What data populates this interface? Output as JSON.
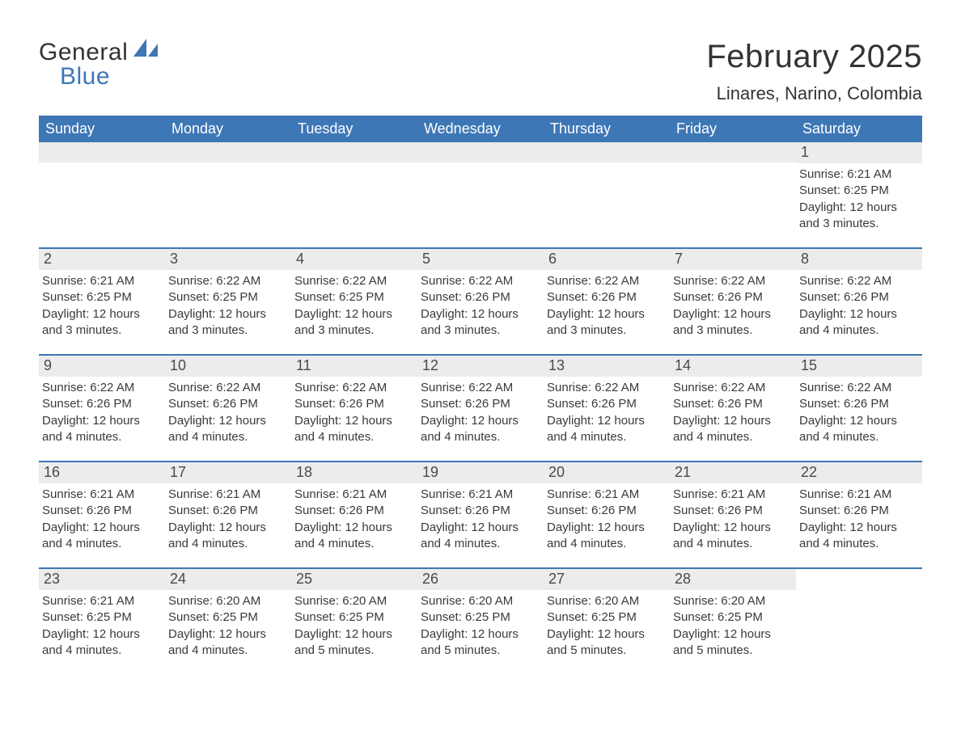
{
  "brand": {
    "word1": "General",
    "word2": "Blue",
    "color_brand": "#3e77b6",
    "color_text": "#333333"
  },
  "title": {
    "month_year": "February 2025",
    "location": "Linares, Narino, Colombia"
  },
  "colors": {
    "header_bg": "#3e77b6",
    "header_fg": "#ffffff",
    "daynum_bg": "#ececec",
    "daynum_fg": "#4a4a4a",
    "rule": "#3e77b6",
    "page_bg": "#ffffff",
    "body_text": "#333333"
  },
  "weekdays": [
    "Sunday",
    "Monday",
    "Tuesday",
    "Wednesday",
    "Thursday",
    "Friday",
    "Saturday"
  ],
  "labels": {
    "sunrise_prefix": "Sunrise: ",
    "sunset_prefix": "Sunset: ",
    "daylight_prefix": "Daylight: "
  },
  "weeks": [
    [
      {
        "blank": true
      },
      {
        "blank": true
      },
      {
        "blank": true
      },
      {
        "blank": true
      },
      {
        "blank": true
      },
      {
        "blank": true
      },
      {
        "num": "1",
        "sunrise": "6:21 AM",
        "sunset": "6:25 PM",
        "daylight": "12 hours and 3 minutes."
      }
    ],
    [
      {
        "num": "2",
        "sunrise": "6:21 AM",
        "sunset": "6:25 PM",
        "daylight": "12 hours and 3 minutes."
      },
      {
        "num": "3",
        "sunrise": "6:22 AM",
        "sunset": "6:25 PM",
        "daylight": "12 hours and 3 minutes."
      },
      {
        "num": "4",
        "sunrise": "6:22 AM",
        "sunset": "6:25 PM",
        "daylight": "12 hours and 3 minutes."
      },
      {
        "num": "5",
        "sunrise": "6:22 AM",
        "sunset": "6:26 PM",
        "daylight": "12 hours and 3 minutes."
      },
      {
        "num": "6",
        "sunrise": "6:22 AM",
        "sunset": "6:26 PM",
        "daylight": "12 hours and 3 minutes."
      },
      {
        "num": "7",
        "sunrise": "6:22 AM",
        "sunset": "6:26 PM",
        "daylight": "12 hours and 3 minutes."
      },
      {
        "num": "8",
        "sunrise": "6:22 AM",
        "sunset": "6:26 PM",
        "daylight": "12 hours and 4 minutes."
      }
    ],
    [
      {
        "num": "9",
        "sunrise": "6:22 AM",
        "sunset": "6:26 PM",
        "daylight": "12 hours and 4 minutes."
      },
      {
        "num": "10",
        "sunrise": "6:22 AM",
        "sunset": "6:26 PM",
        "daylight": "12 hours and 4 minutes."
      },
      {
        "num": "11",
        "sunrise": "6:22 AM",
        "sunset": "6:26 PM",
        "daylight": "12 hours and 4 minutes."
      },
      {
        "num": "12",
        "sunrise": "6:22 AM",
        "sunset": "6:26 PM",
        "daylight": "12 hours and 4 minutes."
      },
      {
        "num": "13",
        "sunrise": "6:22 AM",
        "sunset": "6:26 PM",
        "daylight": "12 hours and 4 minutes."
      },
      {
        "num": "14",
        "sunrise": "6:22 AM",
        "sunset": "6:26 PM",
        "daylight": "12 hours and 4 minutes."
      },
      {
        "num": "15",
        "sunrise": "6:22 AM",
        "sunset": "6:26 PM",
        "daylight": "12 hours and 4 minutes."
      }
    ],
    [
      {
        "num": "16",
        "sunrise": "6:21 AM",
        "sunset": "6:26 PM",
        "daylight": "12 hours and 4 minutes."
      },
      {
        "num": "17",
        "sunrise": "6:21 AM",
        "sunset": "6:26 PM",
        "daylight": "12 hours and 4 minutes."
      },
      {
        "num": "18",
        "sunrise": "6:21 AM",
        "sunset": "6:26 PM",
        "daylight": "12 hours and 4 minutes."
      },
      {
        "num": "19",
        "sunrise": "6:21 AM",
        "sunset": "6:26 PM",
        "daylight": "12 hours and 4 minutes."
      },
      {
        "num": "20",
        "sunrise": "6:21 AM",
        "sunset": "6:26 PM",
        "daylight": "12 hours and 4 minutes."
      },
      {
        "num": "21",
        "sunrise": "6:21 AM",
        "sunset": "6:26 PM",
        "daylight": "12 hours and 4 minutes."
      },
      {
        "num": "22",
        "sunrise": "6:21 AM",
        "sunset": "6:26 PM",
        "daylight": "12 hours and 4 minutes."
      }
    ],
    [
      {
        "num": "23",
        "sunrise": "6:21 AM",
        "sunset": "6:25 PM",
        "daylight": "12 hours and 4 minutes."
      },
      {
        "num": "24",
        "sunrise": "6:20 AM",
        "sunset": "6:25 PM",
        "daylight": "12 hours and 4 minutes."
      },
      {
        "num": "25",
        "sunrise": "6:20 AM",
        "sunset": "6:25 PM",
        "daylight": "12 hours and 5 minutes."
      },
      {
        "num": "26",
        "sunrise": "6:20 AM",
        "sunset": "6:25 PM",
        "daylight": "12 hours and 5 minutes."
      },
      {
        "num": "27",
        "sunrise": "6:20 AM",
        "sunset": "6:25 PM",
        "daylight": "12 hours and 5 minutes."
      },
      {
        "num": "28",
        "sunrise": "6:20 AM",
        "sunset": "6:25 PM",
        "daylight": "12 hours and 5 minutes."
      },
      {
        "blank": true,
        "no_strip": true
      }
    ]
  ]
}
